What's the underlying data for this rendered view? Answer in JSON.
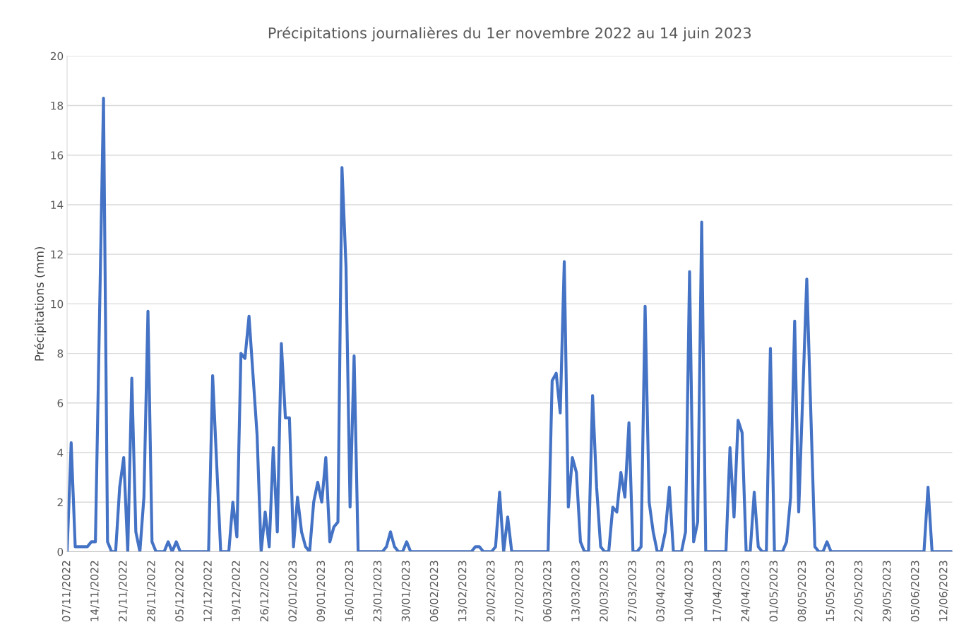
{
  "chart_data": {
    "type": "line",
    "title": "Précipitations journalières du 1er novembre 2022 au 14 juin 2023",
    "ylabel": "Précipitations (mm)",
    "series": [
      {
        "color": "#4472c4",
        "x": [
          "2022-11-07",
          "2022-11-08",
          "2022-11-09",
          "2022-11-12",
          "2022-11-13",
          "2022-11-14",
          "2022-11-16",
          "2022-11-17",
          "2022-11-18",
          "2022-11-19",
          "2022-11-20",
          "2022-11-21",
          "2022-11-22",
          "2022-11-23",
          "2022-11-24",
          "2022-11-25",
          "2022-11-26",
          "2022-11-27",
          "2022-11-28",
          "2022-11-29",
          "2022-12-01",
          "2022-12-02",
          "2022-12-03",
          "2022-12-04",
          "2022-12-05",
          "2022-12-12",
          "2022-12-13",
          "2022-12-15",
          "2022-12-17",
          "2022-12-18",
          "2022-12-19",
          "2022-12-20",
          "2022-12-21",
          "2022-12-22",
          "2022-12-24",
          "2022-12-25",
          "2022-12-26",
          "2022-12-27",
          "2022-12-28",
          "2022-12-29",
          "2022-12-30",
          "2022-12-31",
          "2023-01-01",
          "2023-01-02",
          "2023-01-03",
          "2023-01-04",
          "2023-01-05",
          "2023-01-06",
          "2023-01-07",
          "2023-01-08",
          "2023-01-09",
          "2023-01-10",
          "2023-01-11",
          "2023-01-12",
          "2023-01-13",
          "2023-01-14",
          "2023-01-15",
          "2023-01-16",
          "2023-01-17",
          "2023-01-18",
          "2023-01-24",
          "2023-01-25",
          "2023-01-26",
          "2023-01-27",
          "2023-01-28",
          "2023-01-29",
          "2023-01-30",
          "2023-01-31",
          "2023-02-15",
          "2023-02-16",
          "2023-02-17",
          "2023-02-18",
          "2023-02-20",
          "2023-02-21",
          "2023-02-22",
          "2023-02-23",
          "2023-02-24",
          "2023-02-25",
          "2023-03-06",
          "2023-03-07",
          "2023-03-08",
          "2023-03-09",
          "2023-03-10",
          "2023-03-11",
          "2023-03-12",
          "2023-03-13",
          "2023-03-14",
          "2023-03-15",
          "2023-03-16",
          "2023-03-17",
          "2023-03-18",
          "2023-03-19",
          "2023-03-20",
          "2023-03-21",
          "2023-03-22",
          "2023-03-23",
          "2023-03-24",
          "2023-03-25",
          "2023-03-26",
          "2023-03-27",
          "2023-03-28",
          "2023-03-29",
          "2023-03-30",
          "2023-03-31",
          "2023-04-01",
          "2023-04-02",
          "2023-04-03",
          "2023-04-04",
          "2023-04-05",
          "2023-04-06",
          "2023-04-08",
          "2023-04-09",
          "2023-04-10",
          "2023-04-11",
          "2023-04-12",
          "2023-04-13",
          "2023-04-14",
          "2023-04-19",
          "2023-04-20",
          "2023-04-21",
          "2023-04-22",
          "2023-04-23",
          "2023-04-24",
          "2023-04-25",
          "2023-04-26",
          "2023-04-27",
          "2023-04-28",
          "2023-04-29",
          "2023-04-30",
          "2023-05-01",
          "2023-05-03",
          "2023-05-04",
          "2023-05-05",
          "2023-05-06",
          "2023-05-07",
          "2023-05-09",
          "2023-05-11",
          "2023-05-12",
          "2023-05-13",
          "2023-05-14",
          "2023-05-15",
          "2023-06-07",
          "2023-06-08",
          "2023-06-09",
          "2023-06-14"
        ],
        "values": [
          0,
          4.4,
          0.2,
          0.2,
          0.4,
          0.4,
          18.3,
          0.4,
          0,
          0,
          2.6,
          3.8,
          0,
          7.0,
          0.8,
          0,
          2.2,
          9.7,
          0.4,
          0,
          0,
          0.4,
          0,
          0.4,
          0,
          0,
          7.1,
          0,
          0,
          2.0,
          0.6,
          8.0,
          7.8,
          9.5,
          4.7,
          0,
          1.6,
          0.2,
          4.2,
          0.8,
          8.4,
          5.4,
          5.4,
          0.2,
          2.2,
          0.8,
          0.2,
          0,
          2.0,
          2.8,
          2.0,
          3.8,
          0.4,
          1.0,
          1.2,
          15.5,
          11.5,
          1.8,
          7.9,
          0,
          0,
          0.2,
          0.8,
          0.2,
          0,
          0,
          0.4,
          0,
          0,
          0.2,
          0.2,
          0,
          0,
          0.2,
          2.4,
          0,
          1.4,
          0,
          0,
          6.9,
          7.2,
          5.6,
          11.7,
          1.8,
          3.8,
          3.2,
          0.4,
          0,
          0,
          6.3,
          2.6,
          0.2,
          0,
          0,
          1.8,
          1.6,
          3.2,
          2.2,
          5.2,
          0,
          0,
          0.2,
          9.9,
          2.0,
          0.8,
          0,
          0,
          0.8,
          2.6,
          0,
          0,
          0.8,
          11.3,
          0.4,
          1.2,
          13.3,
          0,
          0,
          4.2,
          1.4,
          5.3,
          4.8,
          0,
          0,
          2.4,
          0.2,
          0,
          0,
          8.2,
          0,
          0,
          0.4,
          2.2,
          9.3,
          1.6,
          11.0,
          0.2,
          0,
          0,
          0.4,
          0,
          0,
          2.6,
          0,
          0
        ]
      }
    ],
    "xlim": [
      "2022-11-07",
      "2023-06-14"
    ],
    "xticks": [
      {
        "value": "2022-11-07",
        "label": "07/11/2022"
      },
      {
        "value": "2022-11-14",
        "label": "14/11/2022"
      },
      {
        "value": "2022-11-21",
        "label": "21/11/2022"
      },
      {
        "value": "2022-11-28",
        "label": "28/11/2022"
      },
      {
        "value": "2022-12-05",
        "label": "05/12/2022"
      },
      {
        "value": "2022-12-12",
        "label": "12/12/2022"
      },
      {
        "value": "2022-12-19",
        "label": "19/12/2022"
      },
      {
        "value": "2022-12-26",
        "label": "26/12/2022"
      },
      {
        "value": "2023-01-02",
        "label": "02/01/2023"
      },
      {
        "value": "2023-01-09",
        "label": "09/01/2023"
      },
      {
        "value": "2023-01-16",
        "label": "16/01/2023"
      },
      {
        "value": "2023-01-23",
        "label": "23/01/2023"
      },
      {
        "value": "2023-01-30",
        "label": "30/01/2023"
      },
      {
        "value": "2023-02-06",
        "label": "06/02/2023"
      },
      {
        "value": "2023-02-13",
        "label": "13/02/2023"
      },
      {
        "value": "2023-02-20",
        "label": "20/02/2023"
      },
      {
        "value": "2023-02-27",
        "label": "27/02/2023"
      },
      {
        "value": "2023-03-06",
        "label": "06/03/2023"
      },
      {
        "value": "2023-03-13",
        "label": "13/03/2023"
      },
      {
        "value": "2023-03-20",
        "label": "20/03/2023"
      },
      {
        "value": "2023-03-27",
        "label": "27/03/2023"
      },
      {
        "value": "2023-04-03",
        "label": "03/04/2023"
      },
      {
        "value": "2023-04-10",
        "label": "10/04/2023"
      },
      {
        "value": "2023-04-17",
        "label": "17/04/2023"
      },
      {
        "value": "2023-04-24",
        "label": "24/04/2023"
      },
      {
        "value": "2023-05-01",
        "label": "01/05/2023"
      },
      {
        "value": "2023-05-08",
        "label": "08/05/2023"
      },
      {
        "value": "2023-05-15",
        "label": "15/05/2023"
      },
      {
        "value": "2023-05-22",
        "label": "22/05/2023"
      },
      {
        "value": "2023-05-29",
        "label": "29/05/2023"
      },
      {
        "value": "2023-06-05",
        "label": "05/06/2023"
      },
      {
        "value": "2023-06-12",
        "label": "12/06/2023"
      }
    ],
    "ylim": [
      0,
      20
    ],
    "yticks": [
      0,
      2,
      4,
      6,
      8,
      10,
      12,
      14,
      16,
      18,
      20
    ],
    "grid": "y",
    "marker": "none",
    "line_style": "solid"
  }
}
